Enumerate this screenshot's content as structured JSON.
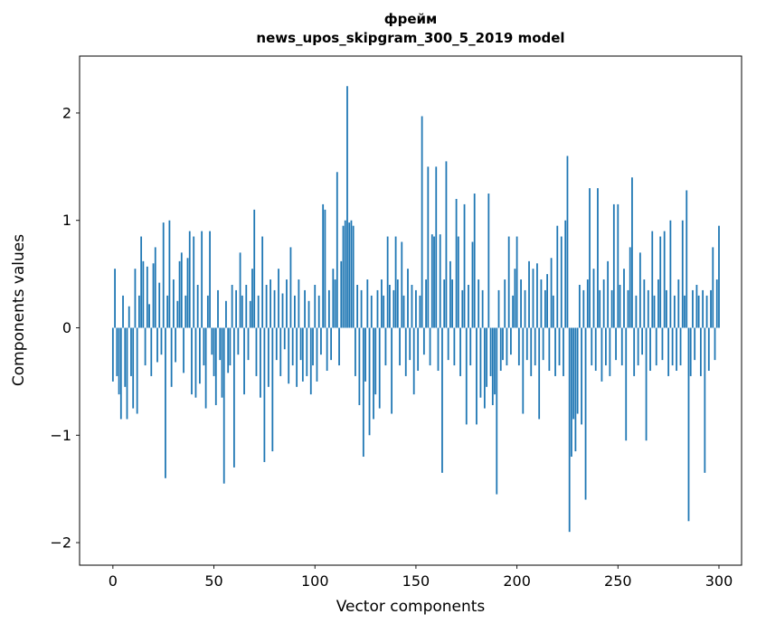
{
  "figure": {
    "title_line1": "фрейм",
    "title_line2": "news_upos_skipgram_300_5_2019 model",
    "xlabel": "Vector components",
    "ylabel": "Components values"
  },
  "chart_data": {
    "type": "bar",
    "title": "фрейм\nnews_upos_skipgram_300_5_2019 model",
    "xlabel": "Vector components",
    "ylabel": "Components values",
    "legend": null,
    "grid": false,
    "bar_color": "#1f77b4",
    "xlim": [
      -16.5,
      311.2
    ],
    "ylim": [
      -2.21,
      2.53
    ],
    "xticks": [
      0,
      50,
      100,
      150,
      200,
      250,
      300
    ],
    "yticks": [
      -2,
      -1,
      0,
      1,
      2
    ],
    "x_start": 0,
    "values": [
      -0.5,
      0.55,
      -0.45,
      -0.62,
      -0.85,
      0.3,
      -0.55,
      -0.85,
      0.2,
      -0.45,
      -0.75,
      0.55,
      -0.8,
      0.3,
      0.85,
      0.62,
      -0.35,
      0.57,
      0.22,
      -0.45,
      0.6,
      0.75,
      -0.32,
      0.42,
      -0.25,
      0.98,
      -1.4,
      0.3,
      1.0,
      -0.55,
      0.45,
      -0.32,
      0.25,
      0.62,
      0.7,
      -0.42,
      0.3,
      0.65,
      0.9,
      -0.62,
      0.85,
      -0.65,
      0.4,
      -0.52,
      0.9,
      -0.35,
      -0.75,
      0.3,
      0.9,
      -0.25,
      -0.45,
      -0.72,
      0.35,
      -0.3,
      -0.65,
      -1.45,
      0.25,
      -0.42,
      -0.35,
      0.4,
      -1.3,
      0.35,
      -0.25,
      0.7,
      0.3,
      -0.62,
      0.4,
      -0.3,
      0.25,
      0.55,
      1.1,
      -0.45,
      0.3,
      -0.65,
      0.85,
      -1.25,
      0.4,
      -0.55,
      0.45,
      -1.15,
      0.35,
      -0.3,
      0.55,
      -0.45,
      0.32,
      -0.2,
      0.45,
      -0.52,
      0.75,
      -0.35,
      0.3,
      -0.55,
      0.45,
      -0.3,
      -0.5,
      0.35,
      -0.45,
      0.25,
      -0.62,
      -0.35,
      0.4,
      -0.5,
      0.3,
      -0.25,
      1.15,
      1.1,
      -0.4,
      0.35,
      -0.3,
      0.55,
      0.45,
      1.45,
      -0.35,
      0.62,
      0.95,
      1.0,
      2.25,
      0.98,
      1.0,
      0.95,
      -0.45,
      0.4,
      -0.72,
      0.35,
      -1.2,
      -0.5,
      0.45,
      -1.0,
      0.3,
      -0.85,
      -0.62,
      0.35,
      -0.75,
      0.45,
      0.3,
      -0.35,
      0.85,
      0.4,
      -0.8,
      0.35,
      0.85,
      0.45,
      -0.35,
      0.8,
      0.3,
      -0.45,
      0.55,
      -0.3,
      0.4,
      -0.62,
      0.35,
      -0.4,
      0.3,
      1.97,
      -0.25,
      0.45,
      1.5,
      -0.35,
      0.87,
      0.85,
      1.5,
      -0.4,
      0.87,
      -1.35,
      0.45,
      1.55,
      -0.3,
      0.62,
      0.45,
      -0.35,
      1.2,
      0.85,
      -0.45,
      0.35,
      1.15,
      -0.9,
      0.4,
      -0.35,
      0.8,
      1.25,
      -0.9,
      0.45,
      -0.65,
      0.35,
      -0.75,
      -0.55,
      1.25,
      -0.45,
      -0.72,
      -0.62,
      -1.55,
      0.35,
      -0.4,
      -0.3,
      0.45,
      -0.35,
      0.85,
      -0.25,
      0.3,
      0.55,
      0.85,
      -0.35,
      0.45,
      -0.8,
      0.35,
      -0.3,
      0.62,
      -0.45,
      0.55,
      -0.35,
      0.6,
      -0.85,
      0.45,
      -0.3,
      0.35,
      0.5,
      -0.4,
      0.65,
      0.3,
      -0.45,
      0.95,
      -0.35,
      0.85,
      -0.45,
      1.0,
      1.6,
      -1.9,
      -1.2,
      -0.85,
      -1.15,
      -0.8,
      0.4,
      -0.9,
      0.35,
      -1.6,
      0.45,
      1.3,
      -0.35,
      0.55,
      -0.4,
      1.3,
      0.35,
      -0.5,
      0.45,
      -0.35,
      0.62,
      -0.45,
      0.35,
      1.15,
      -0.3,
      1.15,
      0.4,
      -0.35,
      0.55,
      -1.05,
      0.35,
      0.75,
      1.4,
      -0.45,
      0.3,
      -0.35,
      0.7,
      -0.25,
      0.45,
      -1.05,
      0.35,
      -0.4,
      0.9,
      0.3,
      -0.35,
      0.45,
      0.85,
      -0.3,
      0.9,
      0.35,
      -0.45,
      1.0,
      -0.35,
      0.3,
      -0.4,
      0.45,
      -0.35,
      1.0,
      0.3,
      1.28,
      -1.8,
      -0.45,
      0.35,
      -0.3,
      0.4,
      0.3,
      -0.45,
      0.35,
      -1.35,
      0.3,
      -0.4,
      0.35,
      0.75,
      -0.3,
      0.45,
      0.95
    ]
  }
}
